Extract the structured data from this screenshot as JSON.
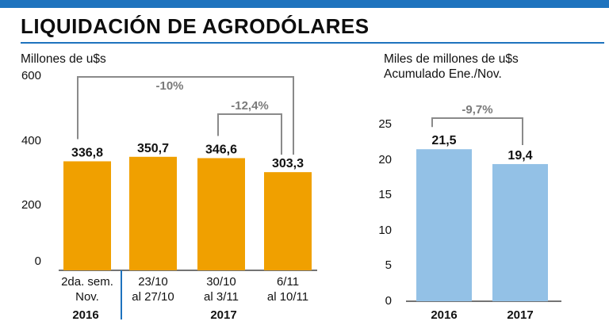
{
  "header": {
    "title": "LIQUIDACIÓN DE AGRODÓLARES"
  },
  "colors": {
    "accent": "#1e73be",
    "left_bars": "#f0a000",
    "right_bars": "#93c1e6",
    "bracket": "#8a8a8a"
  },
  "chart_data": [
    {
      "type": "bar",
      "unit_label": "Millones de u$s",
      "categories": [
        "2da. sem. Nov.",
        "23/10 al 27/10",
        "30/10 al 3/11",
        "6/11 al 10/11"
      ],
      "category_lines": [
        [
          "2da. sem.",
          "Nov."
        ],
        [
          "23/10",
          "al 27/10"
        ],
        [
          "30/10",
          "al 3/11"
        ],
        [
          "6/11",
          "al 10/11"
        ]
      ],
      "values": [
        336.8,
        350.7,
        346.6,
        303.3
      ],
      "value_labels": [
        "336,8",
        "350,7",
        "346,6",
        "303,3"
      ],
      "ylim": [
        0,
        600
      ],
      "yticks": [
        0,
        200,
        400,
        600
      ],
      "groups": [
        {
          "label": "2016",
          "categories": [
            0
          ]
        },
        {
          "label": "2017",
          "categories": [
            1,
            2,
            3
          ]
        }
      ],
      "annotations": [
        {
          "text": "-10%",
          "from": 0,
          "to": 3
        },
        {
          "text": "-12,4%",
          "from": 2,
          "to": 3
        }
      ]
    },
    {
      "type": "bar",
      "unit_label_lines": [
        "Miles de millones de u$s",
        "Acumulado Ene./Nov."
      ],
      "categories": [
        "2016",
        "2017"
      ],
      "values": [
        21.5,
        19.4
      ],
      "value_labels": [
        "21,5",
        "19,4"
      ],
      "ylim": [
        0,
        25
      ],
      "yticks": [
        0,
        5,
        10,
        15,
        20,
        25
      ],
      "annotations": [
        {
          "text": "-9,7%",
          "from": 0,
          "to": 1
        }
      ]
    }
  ]
}
